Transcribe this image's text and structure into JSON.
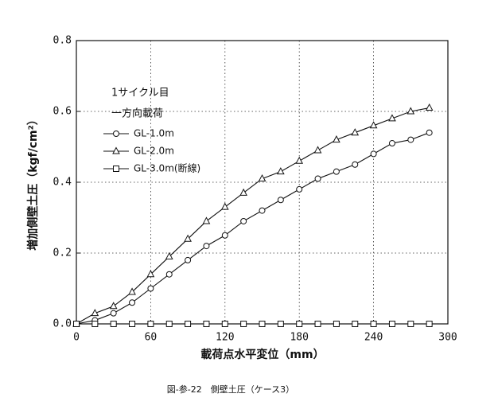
{
  "chart_data": {
    "type": "line",
    "caption": "図-参-22　側壁土圧（ケース3）",
    "xlabel": "載荷点水平変位（mm）",
    "ylabel": "増加側壁土圧（kgf/cm²）",
    "legend_title": [
      "1サイクル目",
      "一方向載荷"
    ],
    "x": [
      0,
      15,
      30,
      45,
      60,
      75,
      90,
      105,
      120,
      135,
      150,
      165,
      180,
      195,
      210,
      225,
      240,
      255,
      270,
      285
    ],
    "series": [
      {
        "name": "GL-1.0m",
        "color": "#111111",
        "marker": "circle",
        "values": [
          0,
          0.01,
          0.03,
          0.06,
          0.1,
          0.14,
          0.18,
          0.22,
          0.25,
          0.29,
          0.32,
          0.35,
          0.38,
          0.41,
          0.43,
          0.45,
          0.48,
          0.51,
          0.52,
          0.54
        ]
      },
      {
        "name": "GL-2.0m",
        "color": "#111111",
        "marker": "triangle",
        "values": [
          0,
          0.03,
          0.05,
          0.09,
          0.14,
          0.19,
          0.24,
          0.29,
          0.33,
          0.37,
          0.41,
          0.43,
          0.46,
          0.49,
          0.52,
          0.54,
          0.56,
          0.58,
          0.6,
          0.61
        ]
      },
      {
        "name": "GL-3.0m(断線)",
        "color": "#111111",
        "marker": "square",
        "values": [
          0,
          0,
          0,
          0,
          0,
          0,
          0,
          0,
          0,
          0,
          0,
          0,
          0,
          0,
          0,
          0,
          0,
          0,
          0,
          0
        ]
      }
    ],
    "xlim": [
      0,
      300
    ],
    "xticks": [
      0,
      60,
      120,
      180,
      240,
      300
    ],
    "ylim": [
      0,
      0.8
    ],
    "yticks": [
      {
        "value": 0,
        "label": "0.0"
      },
      0.2,
      0.4,
      0.6,
      0.8
    ],
    "grid": true
  }
}
